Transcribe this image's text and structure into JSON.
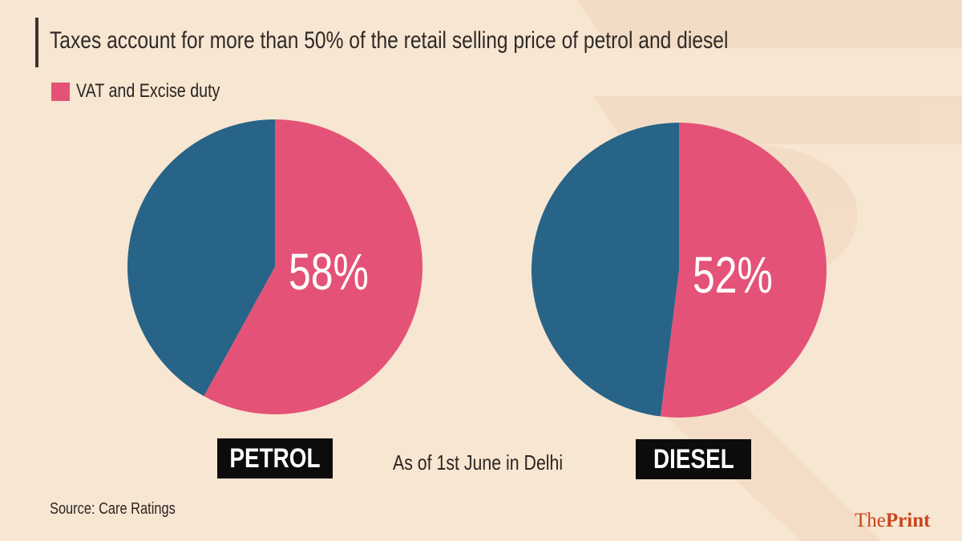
{
  "title": "Taxes account for more than 50% of the retail selling price of petrol and diesel",
  "legend": {
    "label": "VAT and Excise duty",
    "color": "#e45377"
  },
  "note": "As of 1st June in Delhi",
  "source": "Source: Care Ratings",
  "brand": {
    "the": "The",
    "print": "Print"
  },
  "colors": {
    "tax": "#e45377",
    "other": "#276487",
    "background": "#f7e6d1"
  },
  "chart_data": [
    {
      "type": "pie",
      "category": "PETROL",
      "series": [
        {
          "name": "VAT and Excise duty",
          "value": 58
        },
        {
          "value": 42
        }
      ],
      "data_label": "58%"
    },
    {
      "type": "pie",
      "category": "DIESEL",
      "series": [
        {
          "name": "VAT and Excise duty",
          "value": 52
        },
        {
          "value": 48
        }
      ],
      "data_label": "52%"
    }
  ]
}
